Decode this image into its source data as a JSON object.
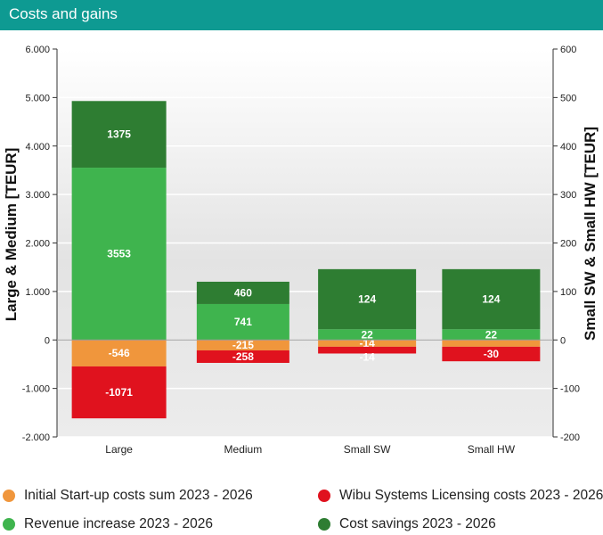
{
  "header": {
    "title": "Costs and gains"
  },
  "colors": {
    "startup": "#f0963c",
    "wibu": "#e0121e",
    "revenue": "#3fb44e",
    "savings": "#2e7d32"
  },
  "chart_data": {
    "type": "bar",
    "stacked": true,
    "categories": [
      "Large",
      "Medium",
      "Small SW",
      "Small HW"
    ],
    "ylabel": "Large & Medium [TEUR]",
    "y2label": "Small SW & Small HW [TEUR]",
    "ylim": [
      -2000,
      6000
    ],
    "y2lim": [
      -200,
      600
    ],
    "yticks": [
      "-2.000",
      "-1.000",
      "0",
      "1.000",
      "2.000",
      "3.000",
      "4.000",
      "5.000",
      "6.000"
    ],
    "y2ticks": [
      "-200",
      "-100",
      "0",
      "100",
      "200",
      "300",
      "400",
      "500",
      "600"
    ],
    "series": [
      {
        "key": "startup",
        "name": "Initial Start-up costs sum 2023 - 2026",
        "values": [
          -546,
          -215,
          -14,
          -14
        ],
        "labels": [
          "-546",
          "-215",
          "-14",
          ""
        ]
      },
      {
        "key": "wibu",
        "name": "Wibu Systems Licensing costs 2023 - 2026",
        "values": [
          -1071,
          -258,
          -14,
          -30
        ],
        "labels": [
          "-1071",
          "-258",
          "-14",
          "-30"
        ]
      },
      {
        "key": "revenue",
        "name": "Revenue increase 2023 - 2026",
        "values": [
          3553,
          741,
          22,
          22
        ],
        "labels": [
          "3553",
          "741",
          "22",
          "22"
        ]
      },
      {
        "key": "savings",
        "name": "Cost savings 2023 - 2026",
        "values": [
          1375,
          460,
          124,
          124
        ],
        "labels": [
          "1375",
          "460",
          "124",
          "124"
        ]
      }
    ],
    "axis_for_category": [
      "left",
      "left",
      "right",
      "right"
    ],
    "grid": "horizontal",
    "legend": "bottom"
  }
}
